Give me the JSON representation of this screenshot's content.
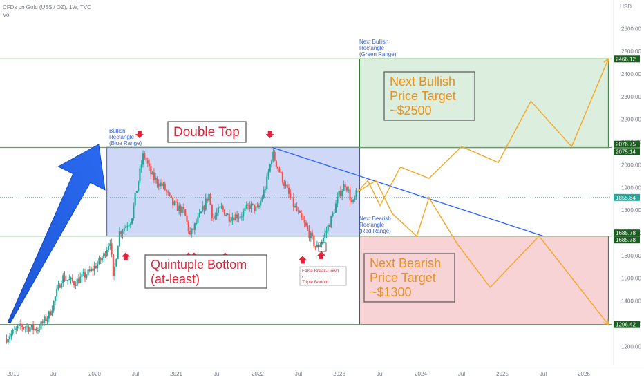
{
  "header": {
    "symbol_line": "CFDs on Gold (US$ / OZ), 1W, TVC",
    "indicator": "Vol",
    "currency": "USD"
  },
  "colors": {
    "up": "#26a69a",
    "down": "#ef5350",
    "green_line": "#4caf50",
    "blue_trend": "#2962ff",
    "orange_path": "#f5a623",
    "blue_rect_fill": "#cfd9f7",
    "green_rect_fill": "#dceedd",
    "red_rect_fill": "#f8d3d6",
    "red_text": "#e0233a",
    "orange_text": "#e8901d"
  },
  "chart_data": {
    "type": "candlestick",
    "title": "CFDs on Gold (US$ / OZ), 1W, TVC",
    "y_axis": {
      "ticks": [
        1200,
        1300,
        1400,
        1500,
        1600,
        1700,
        1800,
        1900,
        2000,
        2100,
        2200,
        2300,
        2400,
        2500,
        2600
      ],
      "tick_labels": [
        "1200.00",
        "1300.00",
        "1400.00",
        "1500.00",
        "1600.00",
        "1700.00",
        "1800.00",
        "1900.00",
        "2000.00",
        "2100.00",
        "2200.00",
        "2300.00",
        "2400.00",
        "2500.00",
        "2600.00"
      ],
      "range": [
        1130,
        2750
      ]
    },
    "x_axis": {
      "labels": [
        "2019",
        "Jul",
        "2020",
        "Jul",
        "2021",
        "Jul",
        "2022",
        "Jul",
        "2023",
        "Jul",
        "2024",
        "Jul",
        "2025",
        "Jul",
        "2026"
      ],
      "dates": [
        2019.0,
        2019.5,
        2020.0,
        2020.5,
        2021.0,
        2021.5,
        2022.0,
        2022.5,
        2023.0,
        2023.5,
        2024.0,
        2024.5,
        2025.0,
        2025.5,
        2026.0
      ]
    },
    "price_path": [
      [
        2018.9,
        1232
      ],
      [
        2019.1,
        1290
      ],
      [
        2019.3,
        1275
      ],
      [
        2019.45,
        1345
      ],
      [
        2019.6,
        1505
      ],
      [
        2019.75,
        1480
      ],
      [
        2019.95,
        1530
      ],
      [
        2020.1,
        1590
      ],
      [
        2020.2,
        1680
      ],
      [
        2020.22,
        1470
      ],
      [
        2020.3,
        1700
      ],
      [
        2020.45,
        1760
      ],
      [
        2020.55,
        1960
      ],
      [
        2020.6,
        2050
      ],
      [
        2020.7,
        1950
      ],
      [
        2020.85,
        1900
      ],
      [
        2020.95,
        1830
      ],
      [
        2021.1,
        1790
      ],
      [
        2021.17,
        1690
      ],
      [
        2021.3,
        1780
      ],
      [
        2021.4,
        1870
      ],
      [
        2021.45,
        1760
      ],
      [
        2021.55,
        1810
      ],
      [
        2021.65,
        1770
      ],
      [
        2021.8,
        1780
      ],
      [
        2021.9,
        1820
      ],
      [
        2022.0,
        1800
      ],
      [
        2022.1,
        1910
      ],
      [
        2022.18,
        2050
      ],
      [
        2022.3,
        1940
      ],
      [
        2022.4,
        1850
      ],
      [
        2022.5,
        1780
      ],
      [
        2022.6,
        1720
      ],
      [
        2022.72,
        1630
      ],
      [
        2022.8,
        1675
      ],
      [
        2022.9,
        1760
      ],
      [
        2023.0,
        1870
      ],
      [
        2023.08,
        1920
      ],
      [
        2023.16,
        1820
      ],
      [
        2023.22,
        1880
      ]
    ],
    "levels": [
      {
        "price": 2466.12,
        "label": "2466.12"
      },
      {
        "price": 2076.75,
        "label": "2076.75"
      },
      {
        "price": 2075.14,
        "label": "2075.14"
      },
      {
        "price": 1855.84,
        "label": "1855.84",
        "style": "last-price"
      },
      {
        "price": 1685.78,
        "label": "1685.78"
      },
      {
        "price": 1685.78,
        "label": "1685.78"
      },
      {
        "price": 1296.42,
        "label": "1296.42"
      }
    ],
    "rectangles": [
      {
        "name": "Bullish Rectangle (Blue Range)",
        "x": [
          2020.15,
          2023.25
        ],
        "y": [
          1685.78,
          2076.75
        ],
        "color": "blue"
      },
      {
        "name": "Next Bullish Rectangle (Green Range)",
        "x": [
          2023.25,
          2026.3
        ],
        "y": [
          2075.14,
          2466.12
        ],
        "color": "green"
      },
      {
        "name": "Next Bearish Rectangle (Red Range)",
        "x": [
          2023.25,
          2026.3
        ],
        "y": [
          1296.42,
          1685.78
        ],
        "color": "red"
      }
    ],
    "blue_trend_line": [
      [
        2022.18,
        2076
      ],
      [
        2025.5,
        1686
      ]
    ],
    "big_arrow": {
      "from": [
        2018.95,
        1305
      ],
      "to": [
        2020.05,
        2090
      ]
    },
    "projection_bullish": [
      [
        2023.22,
        1880
      ],
      [
        2023.35,
        1930
      ],
      [
        2023.5,
        1820
      ],
      [
        2023.75,
        1990
      ],
      [
        2024.1,
        1940
      ],
      [
        2024.5,
        2080
      ],
      [
        2024.95,
        2010
      ],
      [
        2025.35,
        2280
      ],
      [
        2025.85,
        2080
      ],
      [
        2026.3,
        2466
      ]
    ],
    "projection_bearish": [
      [
        2023.22,
        1880
      ],
      [
        2023.45,
        1930
      ],
      [
        2023.65,
        1785
      ],
      [
        2023.95,
        1685
      ],
      [
        2024.1,
        1855
      ],
      [
        2024.45,
        1650
      ],
      [
        2024.85,
        1460
      ],
      [
        2025.45,
        1686
      ],
      [
        2026.3,
        1296
      ]
    ],
    "markers_down": [
      [
        2020.55,
        2135
      ],
      [
        2022.15,
        2135
      ]
    ],
    "markers_up": [
      [
        2020.38,
        1595
      ],
      [
        2021.15,
        1595
      ],
      [
        2021.22,
        1595
      ],
      [
        2021.6,
        1595
      ],
      [
        2022.55,
        1580
      ],
      [
        2022.78,
        1600
      ]
    ]
  },
  "annotations": {
    "double_top": "Double Top",
    "quintuple_bottom_1": "Quintuple Bottom",
    "quintuple_bottom_2": "(at-least)",
    "bullish_rect_1": "Bullish",
    "bullish_rect_2": "Rectangle",
    "bullish_rect_3": "(Blue Range)",
    "next_bullish_rect_1": "Next Bullish",
    "next_bullish_rect_2": "Rectangle",
    "next_bullish_rect_3": "(Green Range)",
    "next_bearish_rect_1": "Next Bearish",
    "next_bearish_rect_2": "Rectangle",
    "next_bearish_rect_3": "(Red Range)",
    "bull_target_1": "Next Bullish",
    "bull_target_2": "Price Target",
    "bull_target_3": "~$2500",
    "bear_target_1": "Next Bearish",
    "bear_target_2": "Price Target",
    "bear_target_3": "~$1300",
    "false_breakdown_1": "False Break-Down",
    "false_breakdown_2": "/",
    "false_breakdown_3": "Triple Bottom"
  }
}
